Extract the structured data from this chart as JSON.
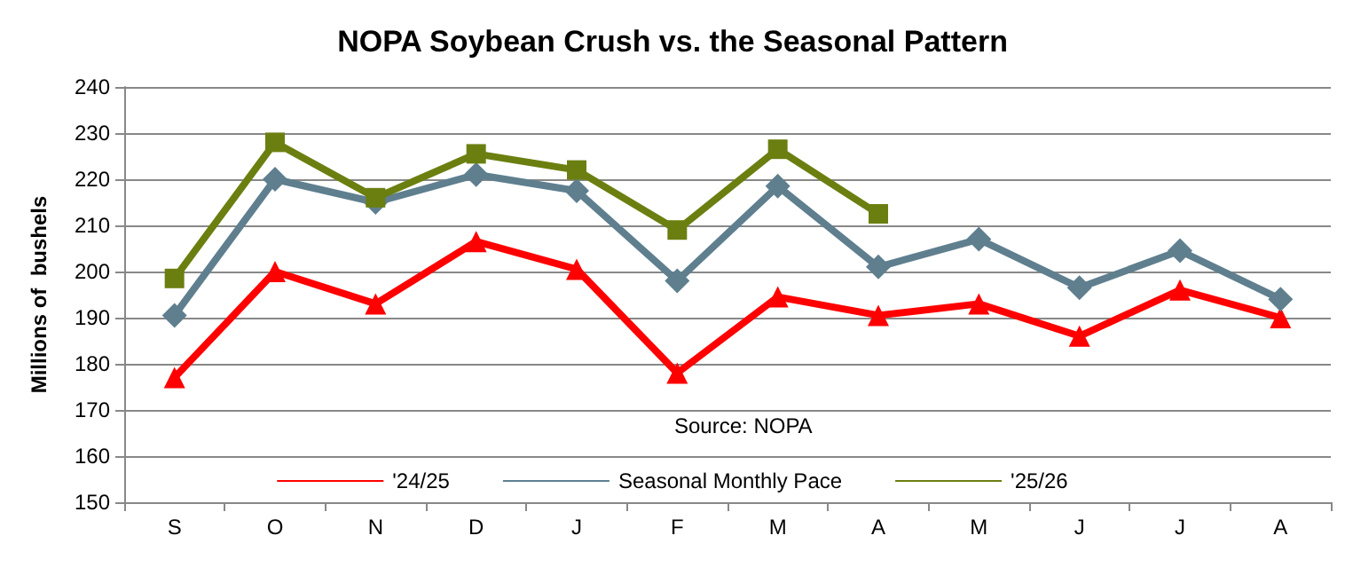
{
  "chart_data": {
    "type": "line",
    "title": "NOPA Soybean Crush vs. the Seasonal Pattern",
    "ylabel": "Millions of  bushels",
    "categories": [
      "S",
      "O",
      "N",
      "D",
      "J",
      "F",
      "M",
      "A",
      "M",
      "J",
      "J",
      "A"
    ],
    "series": [
      {
        "name": "'24/25",
        "color": "#ff0000",
        "marker": "triangle",
        "values": [
          177,
          200,
          193,
          206.5,
          200.5,
          178,
          194.5,
          190.5,
          193,
          186,
          196,
          190
        ]
      },
      {
        "name": "Seasonal Monthly Pace",
        "color": "#5f7f8f",
        "marker": "diamond",
        "values": [
          190.5,
          220,
          215,
          221,
          217.5,
          198,
          218.5,
          201,
          207,
          196.5,
          204.5,
          194
        ]
      },
      {
        "name": "'25/26",
        "color": "#6b7f10",
        "marker": "square",
        "values": [
          198.5,
          228,
          216,
          225.5,
          222,
          209,
          226.5,
          212.5,
          null,
          null,
          null,
          null
        ]
      }
    ],
    "ylim": [
      150,
      240
    ],
    "yticks": [
      150,
      160,
      170,
      180,
      190,
      200,
      210,
      220,
      230,
      240
    ],
    "grid": "y",
    "legend": "bottom",
    "annotations": [
      "Source: NOPA"
    ]
  }
}
